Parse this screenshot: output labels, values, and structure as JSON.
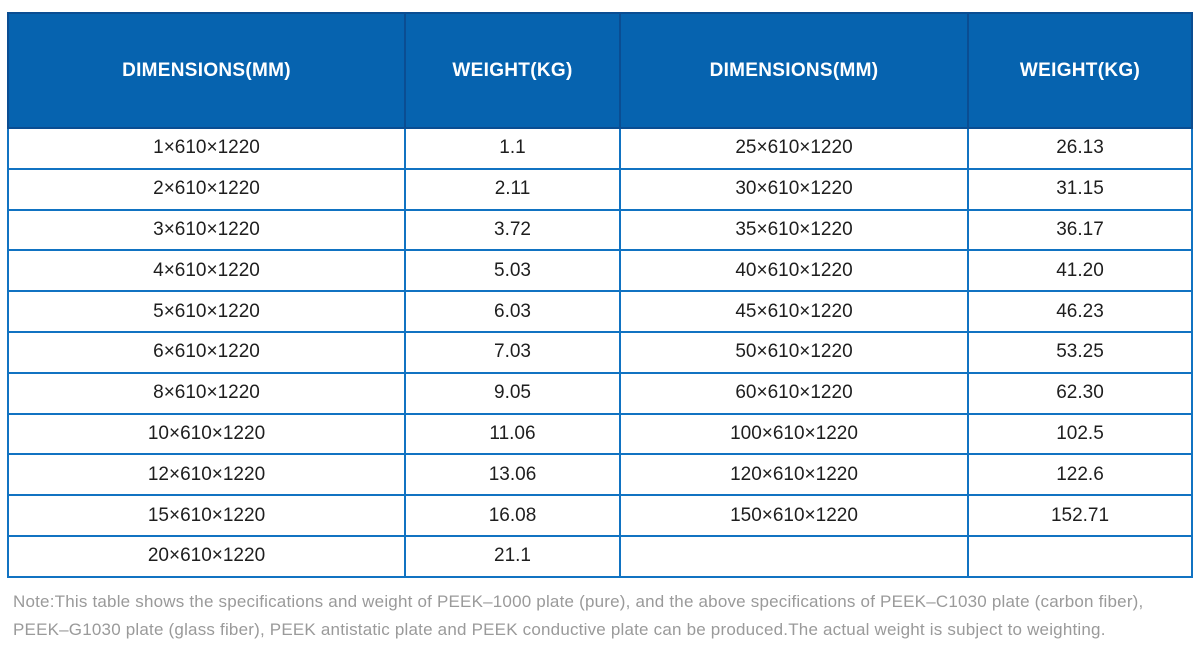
{
  "table": {
    "headers": [
      "DIMENSIONS(MM)",
      "WEIGHT(KG)",
      "DIMENSIONS(MM)",
      "WEIGHT(KG)"
    ],
    "rows": [
      [
        "1×610×1220",
        "1.1",
        "25×610×1220",
        "26.13"
      ],
      [
        "2×610×1220",
        "2.11",
        "30×610×1220",
        "31.15"
      ],
      [
        "3×610×1220",
        "3.72",
        "35×610×1220",
        "36.17"
      ],
      [
        "4×610×1220",
        "5.03",
        "40×610×1220",
        "41.20"
      ],
      [
        "5×610×1220",
        "6.03",
        "45×610×1220",
        "46.23"
      ],
      [
        "6×610×1220",
        "7.03",
        "50×610×1220",
        "53.25"
      ],
      [
        "8×610×1220",
        "9.05",
        "60×610×1220",
        "62.30"
      ],
      [
        "10×610×1220",
        "11.06",
        "100×610×1220",
        "102.5"
      ],
      [
        "12×610×1220",
        "13.06",
        "120×610×1220",
        "122.6"
      ],
      [
        "15×610×1220",
        "16.08",
        "150×610×1220",
        "152.71"
      ],
      [
        "20×610×1220",
        "21.1",
        "",
        ""
      ]
    ]
  },
  "note": {
    "line1": "Note:This table shows the specifications and weight of PEEK–1000 plate (pure), and the above specifications of PEEK–C1030 plate (carbon fiber),",
    "line2": "PEEK–G1030 plate (glass fiber), PEEK antistatic plate and PEEK conductive plate can be produced.The actual weight is subject to weighting."
  },
  "colors": {
    "header_bg": "#0663AF",
    "header_border": "#0A4D92",
    "grid_line": "#1173C2",
    "header_text": "#FFFFFF",
    "cell_text": "#1E1E1E",
    "note_text": "#9A9A9A"
  }
}
